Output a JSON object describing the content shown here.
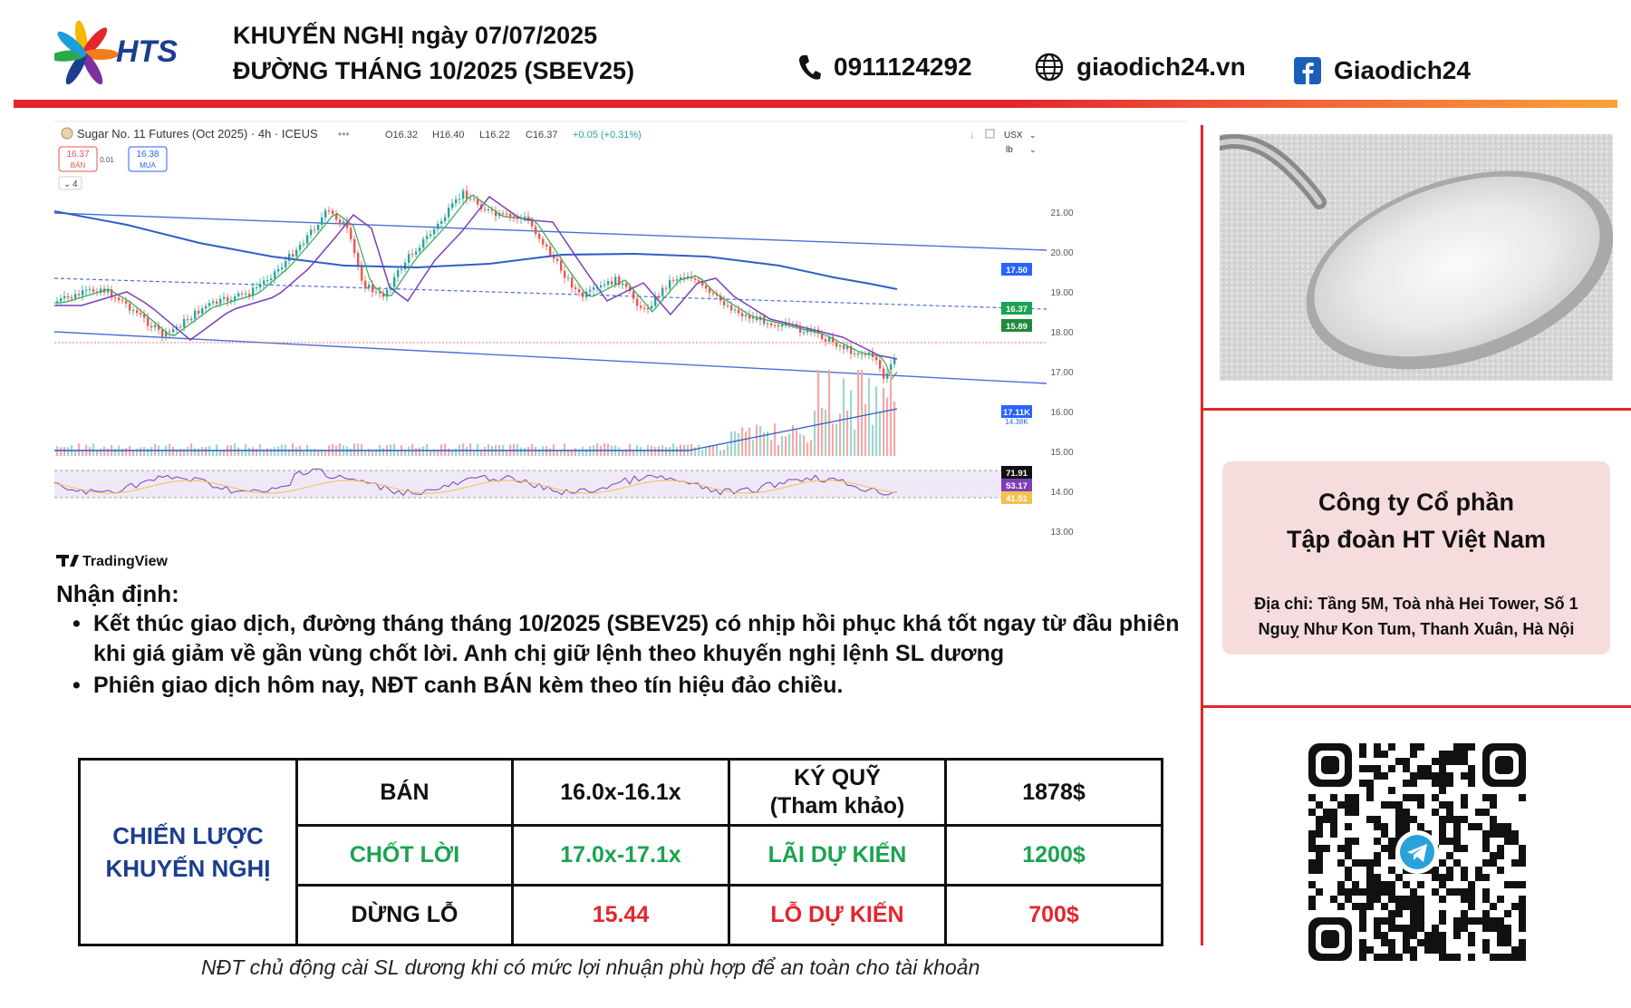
{
  "header": {
    "logo_text": "HTS",
    "title_line1": "KHUYẾN NGHỊ ngày 07/07/2025",
    "title_line2": "ĐƯỜNG THÁNG 10/2025 (SBEV25)",
    "phone": "0911124292",
    "website": "giaodich24.vn",
    "facebook": "Giaodich24",
    "icons": [
      "phone-icon",
      "globe-icon",
      "facebook-icon"
    ]
  },
  "chart": {
    "symbol_title": "Sugar No. 11 Futures (Oct 2025) · 4h · ICEUS",
    "ohlc": {
      "open": "O16.32",
      "high": "H16.40",
      "low": "L16.22",
      "close": "C16.37",
      "change": "+0.05 (+0.31%)"
    },
    "sell_box": {
      "price": "16.37",
      "label": "BÁN"
    },
    "spread": "0.01",
    "buy_box": {
      "price": "16.38",
      "label": "MUA"
    },
    "indicator_count": "4",
    "currency": "USX",
    "unit": "lb",
    "watermark": "TradingView",
    "price_axis": [
      "21.00",
      "20.00",
      "19.00",
      "18.00",
      "17.00",
      "16.00",
      "15.00",
      "14.00",
      "13.00"
    ],
    "axis_badges": {
      "ma_level": "17.50",
      "last_price": "16.37",
      "channel_low": "15.89",
      "volume": "17.11K",
      "volume_sub": "14.38K"
    },
    "oscillator_badges": [
      "71.91",
      "53.17",
      "41.51"
    ],
    "colors": {
      "up": "#26a69a",
      "down": "#ef5350",
      "channel": "#4a6fd6",
      "ma_long": "#2f5fc4",
      "ma_mid": "#7b3fb8",
      "ma_short": "#36a852"
    }
  },
  "analysis": {
    "title": "Nhận định:",
    "bullets": [
      "Kết thúc giao dịch, đường tháng tháng 10/2025 (SBEV25) có nhịp hồi phục khá tốt ngay từ đầu phiên khi giá giảm về gần vùng chốt lời. Anh chị giữ lệnh theo khuyến nghị lệnh SL dương",
      "Phiên giao dịch hôm nay, NĐT canh BÁN kèm theo tín hiệu đảo chiều."
    ]
  },
  "strategy": {
    "head_line1": "CHIẾN LƯỢC",
    "head_line2": "KHUYẾN NGHỊ",
    "rows": [
      {
        "label": "BÁN",
        "value": "16.0x-16.1x",
        "label2_line1": "KÝ QUỸ",
        "label2_line2": "(Tham khảo)",
        "value2": "1878$"
      },
      {
        "label": "CHỐT LỜI",
        "value": "17.0x-17.1x",
        "label2": "LÃI DỰ KIẾN",
        "value2": "1200$"
      },
      {
        "label": "DỪNG LỖ",
        "value": "15.44",
        "label2": "LỖ DỰ KIẾN",
        "value2": "700$"
      }
    ],
    "footnote": "NĐT chủ động cài SL dương khi có mức lợi nhuận phù hợp để an toàn cho tài khoản"
  },
  "company": {
    "name_line1": "Công ty Cổ phần",
    "name_line2": "Tập đoàn HT Việt Nam",
    "address": "Địa chỉ: Tầng 5M, Toà nhà Hei Tower, Số 1 Nguỵ Như Kon Tum, Thanh Xuân, Hà Nội"
  },
  "qr": {
    "center_icon": "telegram-icon"
  }
}
